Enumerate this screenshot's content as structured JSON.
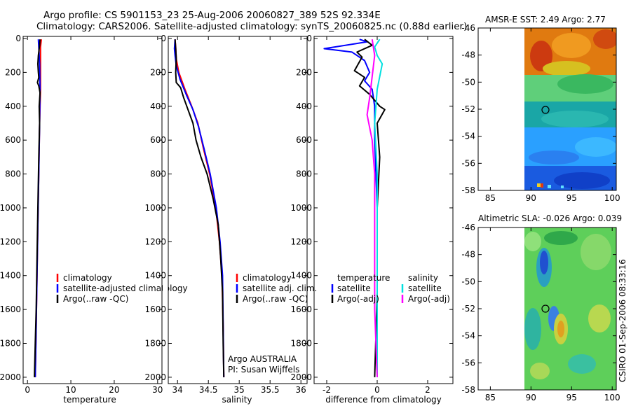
{
  "header": {
    "line1": "Argo profile: CS 5901153_23 25-Aug-2006 20060827_389 52S 92.334E",
    "line2": "Climatology: CARS2006. Satellite-adjusted climatology: synTS_20060825.nc (0.88d earlier)"
  },
  "footer_stamp": "CSIRO 01-Sep-2006 08:33:16",
  "chart_data": [
    {
      "type": "line",
      "id": "temperature",
      "xlabel": "temperature",
      "ylabel": "",
      "xlim": [
        -1,
        31
      ],
      "ylim": [
        2050,
        0
      ],
      "xticks": [
        0,
        10,
        20,
        30
      ],
      "yticks": [
        0,
        200,
        400,
        600,
        800,
        1000,
        1200,
        1400,
        1600,
        1800,
        2000
      ],
      "legend": [
        "climatology",
        "satellite-adjusted climatology",
        "Argo(..raw -QC)"
      ],
      "series": [
        {
          "name": "climatology",
          "color": "#ff0000",
          "points": [
            [
              3.2,
              5
            ],
            [
              3.0,
              50
            ],
            [
              3.0,
              150
            ],
            [
              3.0,
              300
            ],
            [
              2.8,
              500
            ],
            [
              2.6,
              800
            ],
            [
              2.4,
              1100
            ],
            [
              2.2,
              1400
            ],
            [
              2.0,
              1700
            ],
            [
              1.8,
              2000
            ]
          ]
        },
        {
          "name": "satellite-adjusted climatology",
          "color": "#0000ff",
          "points": [
            [
              2.5,
              5
            ],
            [
              2.6,
              50
            ],
            [
              2.8,
              150
            ],
            [
              2.9,
              300
            ],
            [
              2.8,
              500
            ],
            [
              2.6,
              800
            ],
            [
              2.4,
              1100
            ],
            [
              2.2,
              1400
            ],
            [
              2.0,
              1700
            ],
            [
              1.8,
              2000
            ]
          ]
        },
        {
          "name": "Argo(..raw -QC)",
          "color": "#000000",
          "points": [
            [
              2.9,
              5
            ],
            [
              2.8,
              40
            ],
            [
              2.5,
              100
            ],
            [
              2.4,
              150
            ],
            [
              2.5,
              200
            ],
            [
              2.6,
              230
            ],
            [
              2.3,
              260
            ],
            [
              2.6,
              280
            ],
            [
              2.9,
              320
            ],
            [
              2.7,
              400
            ],
            [
              2.8,
              500
            ],
            [
              2.6,
              700
            ],
            [
              2.4,
              1000
            ],
            [
              2.2,
              1300
            ],
            [
              2.0,
              1600
            ],
            [
              1.8,
              1800
            ],
            [
              1.6,
              2000
            ]
          ]
        }
      ]
    },
    {
      "type": "line",
      "id": "salinity",
      "xlabel": "salinity",
      "ylabel": "",
      "xlim": [
        33.85,
        36.1
      ],
      "ylim": [
        2050,
        0
      ],
      "xticks": [
        34,
        34.5,
        35,
        35.5,
        36
      ],
      "yticks": [
        0,
        200,
        400,
        600,
        800,
        1000,
        1200,
        1400,
        1600,
        1800,
        2000
      ],
      "legend": [
        "climatology",
        "satellite adj. clim.",
        "Argo(..raw -QC)"
      ],
      "annotation": [
        "Argo AUSTRALIA",
        "PI: Susan Wijffels"
      ],
      "series": [
        {
          "name": "climatology",
          "color": "#ff0000",
          "points": [
            [
              33.96,
              5
            ],
            [
              33.97,
              50
            ],
            [
              33.98,
              120
            ],
            [
              34.02,
              200
            ],
            [
              34.12,
              300
            ],
            [
              34.23,
              400
            ],
            [
              34.33,
              500
            ],
            [
              34.42,
              650
            ],
            [
              34.52,
              800
            ],
            [
              34.62,
              1000
            ],
            [
              34.68,
              1200
            ],
            [
              34.72,
              1400
            ],
            [
              34.74,
              1700
            ],
            [
              34.75,
              2000
            ]
          ]
        },
        {
          "name": "satellite adj. clim.",
          "color": "#0000ff",
          "points": [
            [
              33.96,
              5
            ],
            [
              33.95,
              60
            ],
            [
              33.96,
              100
            ],
            [
              33.98,
              160
            ],
            [
              34.04,
              240
            ],
            [
              34.14,
              330
            ],
            [
              34.25,
              420
            ],
            [
              34.34,
              520
            ],
            [
              34.43,
              650
            ],
            [
              34.53,
              800
            ],
            [
              34.63,
              1000
            ],
            [
              34.69,
              1200
            ],
            [
              34.73,
              1400
            ],
            [
              34.74,
              1700
            ],
            [
              34.75,
              2000
            ]
          ]
        },
        {
          "name": "Argo(..raw -QC)",
          "color": "#000000",
          "points": [
            [
              33.96,
              5
            ],
            [
              33.97,
              60
            ],
            [
              33.98,
              120
            ],
            [
              33.97,
              200
            ],
            [
              33.98,
              260
            ],
            [
              34.05,
              290
            ],
            [
              34.1,
              350
            ],
            [
              34.15,
              400
            ],
            [
              34.25,
              500
            ],
            [
              34.3,
              600
            ],
            [
              34.38,
              700
            ],
            [
              34.48,
              800
            ],
            [
              34.58,
              950
            ],
            [
              34.66,
              1100
            ],
            [
              34.7,
              1300
            ],
            [
              34.73,
              1500
            ],
            [
              34.74,
              1800
            ],
            [
              34.75,
              2000
            ]
          ]
        }
      ]
    },
    {
      "type": "line",
      "id": "difference",
      "xlabel": "difference from climatology",
      "ylabel": "",
      "xlim": [
        -2.5,
        3.0
      ],
      "ylim": [
        2050,
        0
      ],
      "xticks": [
        -2,
        0,
        2
      ],
      "yticks": [
        0,
        200,
        400,
        600,
        800,
        1000,
        1200,
        1400,
        1600,
        1800,
        2000
      ],
      "legend_groups": [
        {
          "title": "temperature",
          "items": [
            "satellite",
            "Argo(-adj)"
          ]
        },
        {
          "title": "salinity",
          "items": [
            "satellite",
            "Argo(-adj)"
          ]
        }
      ],
      "series": [
        {
          "name": "temperature satellite",
          "color": "#0000ff",
          "points": [
            [
              -0.7,
              5
            ],
            [
              -0.4,
              20
            ],
            [
              -2.1,
              60
            ],
            [
              -1.0,
              80
            ],
            [
              -0.5,
              130
            ],
            [
              -0.3,
              200
            ],
            [
              -0.5,
              250
            ],
            [
              -0.2,
              300
            ],
            [
              -0.1,
              400
            ],
            [
              -0.1,
              600
            ],
            [
              0.0,
              1000
            ],
            [
              0.0,
              1500
            ],
            [
              0.0,
              2000
            ]
          ]
        },
        {
          "name": "temperature Argo(-adj)",
          "color": "#000000",
          "points": [
            [
              -0.5,
              5
            ],
            [
              -0.2,
              40
            ],
            [
              -0.8,
              80
            ],
            [
              -0.6,
              110
            ],
            [
              -0.9,
              190
            ],
            [
              -0.5,
              230
            ],
            [
              -0.7,
              280
            ],
            [
              -0.3,
              330
            ],
            [
              0.1,
              400
            ],
            [
              0.3,
              420
            ],
            [
              0.0,
              500
            ],
            [
              0.1,
              700
            ],
            [
              0.0,
              1000
            ],
            [
              0.0,
              1500
            ],
            [
              -0.1,
              2000
            ]
          ]
        },
        {
          "name": "salinity satellite",
          "color": "#00e0e0",
          "points": [
            [
              0.1,
              5
            ],
            [
              -0.1,
              50
            ],
            [
              0.0,
              100
            ],
            [
              0.2,
              150
            ],
            [
              0.0,
              300
            ],
            [
              -0.1,
              500
            ],
            [
              0.0,
              800
            ],
            [
              0.0,
              1200
            ],
            [
              0.0,
              1600
            ],
            [
              0.0,
              2000
            ]
          ]
        },
        {
          "name": "salinity Argo(-adj)",
          "color": "#ff00ff",
          "points": [
            [
              -0.2,
              5
            ],
            [
              -0.1,
              100
            ],
            [
              -0.3,
              350
            ],
            [
              -0.4,
              450
            ],
            [
              -0.2,
              600
            ],
            [
              -0.1,
              800
            ],
            [
              -0.1,
              1200
            ],
            [
              -0.1,
              1600
            ],
            [
              0.0,
              2000
            ]
          ]
        }
      ]
    },
    {
      "type": "heatmap",
      "id": "sst_map",
      "title": "AMSR-E SST: 2.49 Argo: 2.77",
      "xlim": [
        83.5,
        100.5
      ],
      "ylim": [
        -58,
        -46
      ],
      "xticks": [
        85,
        90,
        95,
        100
      ],
      "yticks": [
        -46,
        -48,
        -50,
        -52,
        -54,
        -56,
        -58
      ],
      "data_xlim": [
        90,
        100.5
      ],
      "float_position": [
        92.334,
        -52.0
      ],
      "color_bands": [
        {
          "lat": [
            -46,
            -49.3
          ],
          "color": "#e07a10"
        },
        {
          "lat": [
            -49.3,
            -51.5
          ],
          "color": "#5fcf7a"
        },
        {
          "lat": [
            -51.5,
            -53.2
          ],
          "color": "#1aa6a6"
        },
        {
          "lat": [
            -53.2,
            -56.2
          ],
          "color": "#2aa0ff"
        },
        {
          "lat": [
            -56.2,
            -58
          ],
          "color": "#1a5be0"
        }
      ]
    },
    {
      "type": "heatmap",
      "id": "sla_map",
      "title": "Altimetric SLA: -0.026 Argo: 0.039",
      "xlim": [
        83.5,
        100.5
      ],
      "ylim": [
        -58,
        -46
      ],
      "xticks": [
        85,
        90,
        95,
        100
      ],
      "yticks": [
        -46,
        -48,
        -50,
        -52,
        -54,
        -56,
        -58
      ],
      "data_xlim": [
        90,
        100.5
      ],
      "float_position": [
        92.334,
        -52.0
      ],
      "base_color": "#5ecf5a"
    }
  ]
}
